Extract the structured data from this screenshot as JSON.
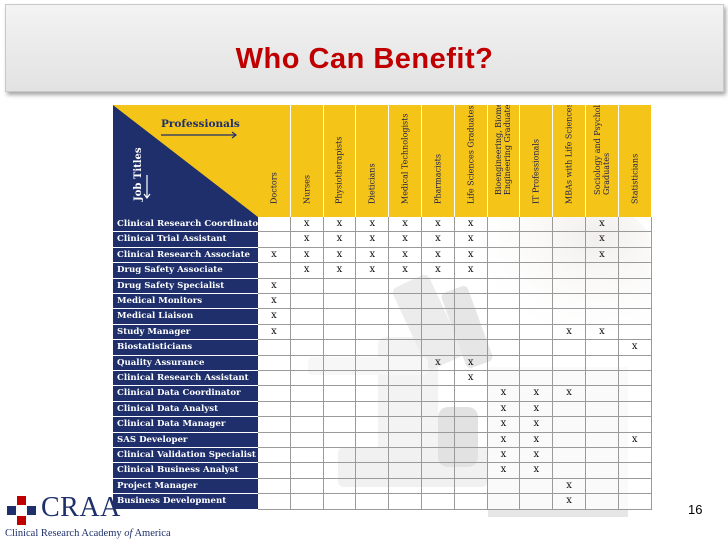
{
  "slide": {
    "title": "Who Can Benefit?",
    "page_number": "16"
  },
  "matrix": {
    "corner_top": "Professionals",
    "corner_side": "Job Titles",
    "columns": [
      "Doctors",
      "Nurses",
      "Physiotherapists",
      "Dieticians",
      "Medical Technologists",
      "Pharmacists",
      "Life Sciences Graduates",
      "Bioengineering, Biomedical\nEngineering Graduates",
      "IT Professionals",
      "MBAs with Life Sciences",
      "Sociology and Psychology\nGraduates",
      "Statisticians"
    ],
    "rows": [
      {
        "label": "Clinical Research Coordinator",
        "marks": [
          "",
          "x",
          "x",
          "x",
          "x",
          "x",
          "x",
          "",
          "",
          "",
          "x",
          ""
        ]
      },
      {
        "label": "Clinical Trial Assistant",
        "marks": [
          "",
          "x",
          "x",
          "x",
          "x",
          "x",
          "x",
          "",
          "",
          "",
          "x",
          ""
        ]
      },
      {
        "label": "Clinical Research Associate",
        "marks": [
          "x",
          "x",
          "x",
          "x",
          "x",
          "x",
          "x",
          "",
          "",
          "",
          "x",
          ""
        ]
      },
      {
        "label": "Drug Safety Associate",
        "marks": [
          "",
          "x",
          "x",
          "x",
          "x",
          "x",
          "x",
          "",
          "",
          "",
          "",
          ""
        ]
      },
      {
        "label": "Drug Safety Specialist",
        "marks": [
          "x",
          "",
          "",
          "",
          "",
          "",
          "",
          "",
          "",
          "",
          "",
          ""
        ]
      },
      {
        "label": "Medical Monitors",
        "marks": [
          "x",
          "",
          "",
          "",
          "",
          "",
          "",
          "",
          "",
          "",
          "",
          ""
        ]
      },
      {
        "label": "Medical Liaison",
        "marks": [
          "x",
          "",
          "",
          "",
          "",
          "",
          "",
          "",
          "",
          "",
          "",
          ""
        ]
      },
      {
        "label": "Study Manager",
        "marks": [
          "x",
          "",
          "",
          "",
          "",
          "",
          "",
          "",
          "",
          "x",
          "x",
          ""
        ]
      },
      {
        "label": "Biostatisticians",
        "marks": [
          "",
          "",
          "",
          "",
          "",
          "",
          "",
          "",
          "",
          "",
          "",
          "x"
        ]
      },
      {
        "label": "Quality Assurance",
        "marks": [
          "",
          "",
          "",
          "",
          "",
          "x",
          "x",
          "",
          "",
          "",
          "",
          ""
        ]
      },
      {
        "label": "Clinical Research Assistant",
        "marks": [
          "",
          "",
          "",
          "",
          "",
          "",
          "x",
          "",
          "",
          "",
          "",
          ""
        ]
      },
      {
        "label": "Clinical Data Coordinator",
        "marks": [
          "",
          "",
          "",
          "",
          "",
          "",
          "",
          "x",
          "x",
          "x",
          "",
          ""
        ]
      },
      {
        "label": "Clinical Data Analyst",
        "marks": [
          "",
          "",
          "",
          "",
          "",
          "",
          "",
          "x",
          "x",
          "",
          "",
          ""
        ]
      },
      {
        "label": "Clinical Data Manager",
        "marks": [
          "",
          "",
          "",
          "",
          "",
          "",
          "",
          "x",
          "x",
          "",
          "",
          ""
        ]
      },
      {
        "label": "SAS Developer",
        "marks": [
          "",
          "",
          "",
          "",
          "",
          "",
          "",
          "x",
          "x",
          "",
          "",
          "x"
        ]
      },
      {
        "label": "Clinical Validation Specialist",
        "marks": [
          "",
          "",
          "",
          "",
          "",
          "",
          "",
          "x",
          "x",
          "",
          "",
          ""
        ]
      },
      {
        "label": "Clinical Business Analyst",
        "marks": [
          "",
          "",
          "",
          "",
          "",
          "",
          "",
          "x",
          "x",
          "",
          "",
          ""
        ]
      },
      {
        "label": "Project Manager",
        "marks": [
          "",
          "",
          "",
          "",
          "",
          "",
          "",
          "",
          "",
          "x",
          "",
          ""
        ]
      },
      {
        "label": "Business Development",
        "marks": [
          "",
          "",
          "",
          "",
          "",
          "",
          "",
          "",
          "",
          "x",
          "",
          ""
        ]
      }
    ]
  },
  "logo": {
    "name": "CRAA",
    "subtitle_main": "Clinical Research Academy ",
    "subtitle_italic": "of",
    "subtitle_end": " America"
  },
  "colors": {
    "title": "#c00000",
    "row_header": "#1e2f6b",
    "column_header": "#f4c419"
  }
}
